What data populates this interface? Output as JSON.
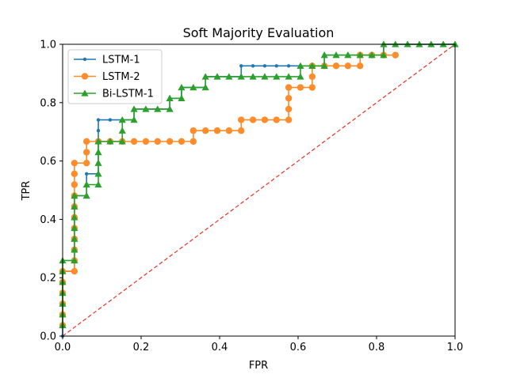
{
  "chart_data": {
    "type": "line",
    "title": "Soft Majority Evaluation",
    "xlabel": "FPR",
    "ylabel": "TPR",
    "xlim": [
      0,
      1
    ],
    "ylim": [
      0,
      1
    ],
    "xticks": [
      "0.0",
      "0.2",
      "0.4",
      "0.6",
      "0.8",
      "1.0"
    ],
    "yticks": [
      "0.0",
      "0.2",
      "0.4",
      "0.6",
      "0.8",
      "1.0"
    ],
    "legend_position": "top-left",
    "grid": false,
    "reference_line": {
      "style": "dashed",
      "color": "#e8312a",
      "from": [
        0,
        0
      ],
      "to": [
        1,
        1
      ]
    },
    "series": [
      {
        "name": "LSTM-1",
        "color": "#1f77b4",
        "marker": "circle-small",
        "points": [
          [
            0,
            0
          ],
          [
            0,
            0.037
          ],
          [
            0,
            0.074
          ],
          [
            0,
            0.111
          ],
          [
            0,
            0.148
          ],
          [
            0,
            0.185
          ],
          [
            0,
            0.222
          ],
          [
            0.03,
            0.222
          ],
          [
            0.03,
            0.259
          ],
          [
            0.03,
            0.296
          ],
          [
            0.03,
            0.333
          ],
          [
            0.03,
            0.37
          ],
          [
            0.03,
            0.407
          ],
          [
            0.03,
            0.444
          ],
          [
            0.03,
            0.481
          ],
          [
            0.061,
            0.481
          ],
          [
            0.061,
            0.519
          ],
          [
            0.061,
            0.556
          ],
          [
            0.091,
            0.556
          ],
          [
            0.091,
            0.593
          ],
          [
            0.091,
            0.63
          ],
          [
            0.091,
            0.667
          ],
          [
            0.091,
            0.704
          ],
          [
            0.091,
            0.741
          ],
          [
            0.121,
            0.741
          ],
          [
            0.152,
            0.741
          ],
          [
            0.182,
            0.741
          ],
          [
            0.182,
            0.778
          ],
          [
            0.212,
            0.778
          ],
          [
            0.242,
            0.778
          ],
          [
            0.273,
            0.778
          ],
          [
            0.273,
            0.815
          ],
          [
            0.303,
            0.815
          ],
          [
            0.303,
            0.852
          ],
          [
            0.333,
            0.852
          ],
          [
            0.364,
            0.852
          ],
          [
            0.364,
            0.889
          ],
          [
            0.394,
            0.889
          ],
          [
            0.424,
            0.889
          ],
          [
            0.455,
            0.889
          ],
          [
            0.455,
            0.926
          ],
          [
            0.485,
            0.926
          ],
          [
            0.515,
            0.926
          ],
          [
            0.545,
            0.926
          ],
          [
            0.576,
            0.926
          ],
          [
            0.606,
            0.926
          ],
          [
            0.636,
            0.926
          ],
          [
            0.667,
            0.926
          ],
          [
            0.667,
            0.963
          ],
          [
            0.697,
            0.963
          ],
          [
            0.727,
            0.963
          ],
          [
            0.758,
            0.963
          ],
          [
            0.788,
            0.963
          ],
          [
            0.818,
            0.963
          ],
          [
            0.818,
            1.0
          ],
          [
            0.848,
            1.0
          ],
          [
            0.879,
            1.0
          ],
          [
            0.909,
            1.0
          ],
          [
            0.939,
            1.0
          ],
          [
            0.97,
            1.0
          ],
          [
            1.0,
            1.0
          ]
        ]
      },
      {
        "name": "LSTM-2",
        "color": "#ff8c2a",
        "marker": "circle",
        "points": [
          [
            0,
            0.037
          ],
          [
            0,
            0.074
          ],
          [
            0,
            0.111
          ],
          [
            0,
            0.148
          ],
          [
            0,
            0.185
          ],
          [
            0,
            0.222
          ],
          [
            0.03,
            0.222
          ],
          [
            0.03,
            0.259
          ],
          [
            0.03,
            0.296
          ],
          [
            0.03,
            0.333
          ],
          [
            0.03,
            0.37
          ],
          [
            0.03,
            0.407
          ],
          [
            0.03,
            0.444
          ],
          [
            0.03,
            0.481
          ],
          [
            0.03,
            0.519
          ],
          [
            0.03,
            0.556
          ],
          [
            0.03,
            0.593
          ],
          [
            0.061,
            0.593
          ],
          [
            0.061,
            0.63
          ],
          [
            0.061,
            0.667
          ],
          [
            0.091,
            0.667
          ],
          [
            0.121,
            0.667
          ],
          [
            0.152,
            0.667
          ],
          [
            0.182,
            0.667
          ],
          [
            0.212,
            0.667
          ],
          [
            0.242,
            0.667
          ],
          [
            0.273,
            0.667
          ],
          [
            0.303,
            0.667
          ],
          [
            0.333,
            0.667
          ],
          [
            0.333,
            0.704
          ],
          [
            0.364,
            0.704
          ],
          [
            0.394,
            0.704
          ],
          [
            0.424,
            0.704
          ],
          [
            0.455,
            0.704
          ],
          [
            0.455,
            0.741
          ],
          [
            0.485,
            0.741
          ],
          [
            0.515,
            0.741
          ],
          [
            0.545,
            0.741
          ],
          [
            0.576,
            0.741
          ],
          [
            0.576,
            0.778
          ],
          [
            0.576,
            0.815
          ],
          [
            0.576,
            0.852
          ],
          [
            0.606,
            0.852
          ],
          [
            0.636,
            0.852
          ],
          [
            0.636,
            0.889
          ],
          [
            0.636,
            0.926
          ],
          [
            0.667,
            0.926
          ],
          [
            0.697,
            0.926
          ],
          [
            0.727,
            0.926
          ],
          [
            0.758,
            0.926
          ],
          [
            0.758,
            0.963
          ],
          [
            0.788,
            0.963
          ],
          [
            0.818,
            0.963
          ],
          [
            0.848,
            0.963
          ]
        ]
      },
      {
        "name": "Bi-LSTM-1",
        "color": "#2ca02c",
        "marker": "triangle",
        "points": [
          [
            0,
            0.037
          ],
          [
            0,
            0.074
          ],
          [
            0,
            0.111
          ],
          [
            0,
            0.148
          ],
          [
            0,
            0.185
          ],
          [
            0,
            0.222
          ],
          [
            0,
            0.259
          ],
          [
            0.03,
            0.259
          ],
          [
            0.03,
            0.296
          ],
          [
            0.03,
            0.333
          ],
          [
            0.03,
            0.37
          ],
          [
            0.03,
            0.407
          ],
          [
            0.03,
            0.444
          ],
          [
            0.03,
            0.481
          ],
          [
            0.061,
            0.481
          ],
          [
            0.061,
            0.519
          ],
          [
            0.091,
            0.519
          ],
          [
            0.091,
            0.556
          ],
          [
            0.091,
            0.593
          ],
          [
            0.091,
            0.63
          ],
          [
            0.091,
            0.667
          ],
          [
            0.121,
            0.667
          ],
          [
            0.152,
            0.667
          ],
          [
            0.152,
            0.704
          ],
          [
            0.152,
            0.741
          ],
          [
            0.182,
            0.741
          ],
          [
            0.182,
            0.778
          ],
          [
            0.212,
            0.778
          ],
          [
            0.242,
            0.778
          ],
          [
            0.273,
            0.778
          ],
          [
            0.273,
            0.815
          ],
          [
            0.303,
            0.815
          ],
          [
            0.303,
            0.852
          ],
          [
            0.333,
            0.852
          ],
          [
            0.364,
            0.852
          ],
          [
            0.364,
            0.889
          ],
          [
            0.394,
            0.889
          ],
          [
            0.424,
            0.889
          ],
          [
            0.455,
            0.889
          ],
          [
            0.485,
            0.889
          ],
          [
            0.515,
            0.889
          ],
          [
            0.545,
            0.889
          ],
          [
            0.576,
            0.889
          ],
          [
            0.606,
            0.889
          ],
          [
            0.606,
            0.926
          ],
          [
            0.636,
            0.926
          ],
          [
            0.667,
            0.926
          ],
          [
            0.667,
            0.963
          ],
          [
            0.697,
            0.963
          ],
          [
            0.727,
            0.963
          ],
          [
            0.758,
            0.963
          ],
          [
            0.788,
            0.963
          ],
          [
            0.818,
            0.963
          ],
          [
            0.818,
            1.0
          ],
          [
            0.848,
            1.0
          ],
          [
            0.879,
            1.0
          ],
          [
            0.909,
            1.0
          ],
          [
            0.939,
            1.0
          ],
          [
            0.97,
            1.0
          ],
          [
            1.0,
            1.0
          ]
        ]
      }
    ]
  }
}
